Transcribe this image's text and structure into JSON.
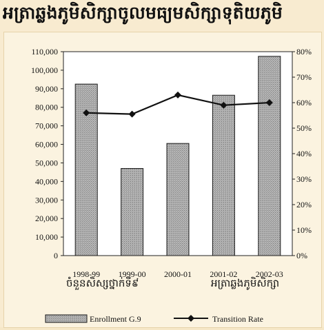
{
  "title": "អត្រាឆ្លងភូមិសិក្សាចូលមធ្យមសិក្សាទុតិយភូមិ",
  "chart_data": {
    "type": "bar",
    "categories": [
      "1998-99",
      "1999-00",
      "2000-01",
      "2001-02",
      "2002-03"
    ],
    "series": [
      {
        "name": "Enrollment G.9",
        "type": "bar",
        "axis": "left",
        "values": [
          92500,
          47000,
          60500,
          86500,
          107500
        ],
        "color": "#a9a9a9"
      },
      {
        "name": "Transition Rate",
        "type": "line",
        "axis": "right",
        "values": [
          56,
          55.5,
          63,
          59,
          60
        ],
        "color": "#111111",
        "marker": "diamond"
      }
    ],
    "ylim_left": [
      0,
      110000
    ],
    "yticks_left": [
      "0",
      "10,000",
      "20,000",
      "30,000",
      "40,000",
      "50,000",
      "60,000",
      "70,000",
      "80,000",
      "90,000",
      "100,000",
      "110,000"
    ],
    "ylim_right": [
      0,
      80
    ],
    "yticks_right": [
      "0%",
      "10%",
      "20%",
      "30%",
      "40%",
      "50%",
      "60%",
      "70%",
      "80%"
    ],
    "group_labels": [
      "ចំនួនសិស្សថ្នាក់ទី៩",
      "អត្រាឆ្លងភូមិសិក្សា"
    ],
    "legend_position": "bottom"
  }
}
